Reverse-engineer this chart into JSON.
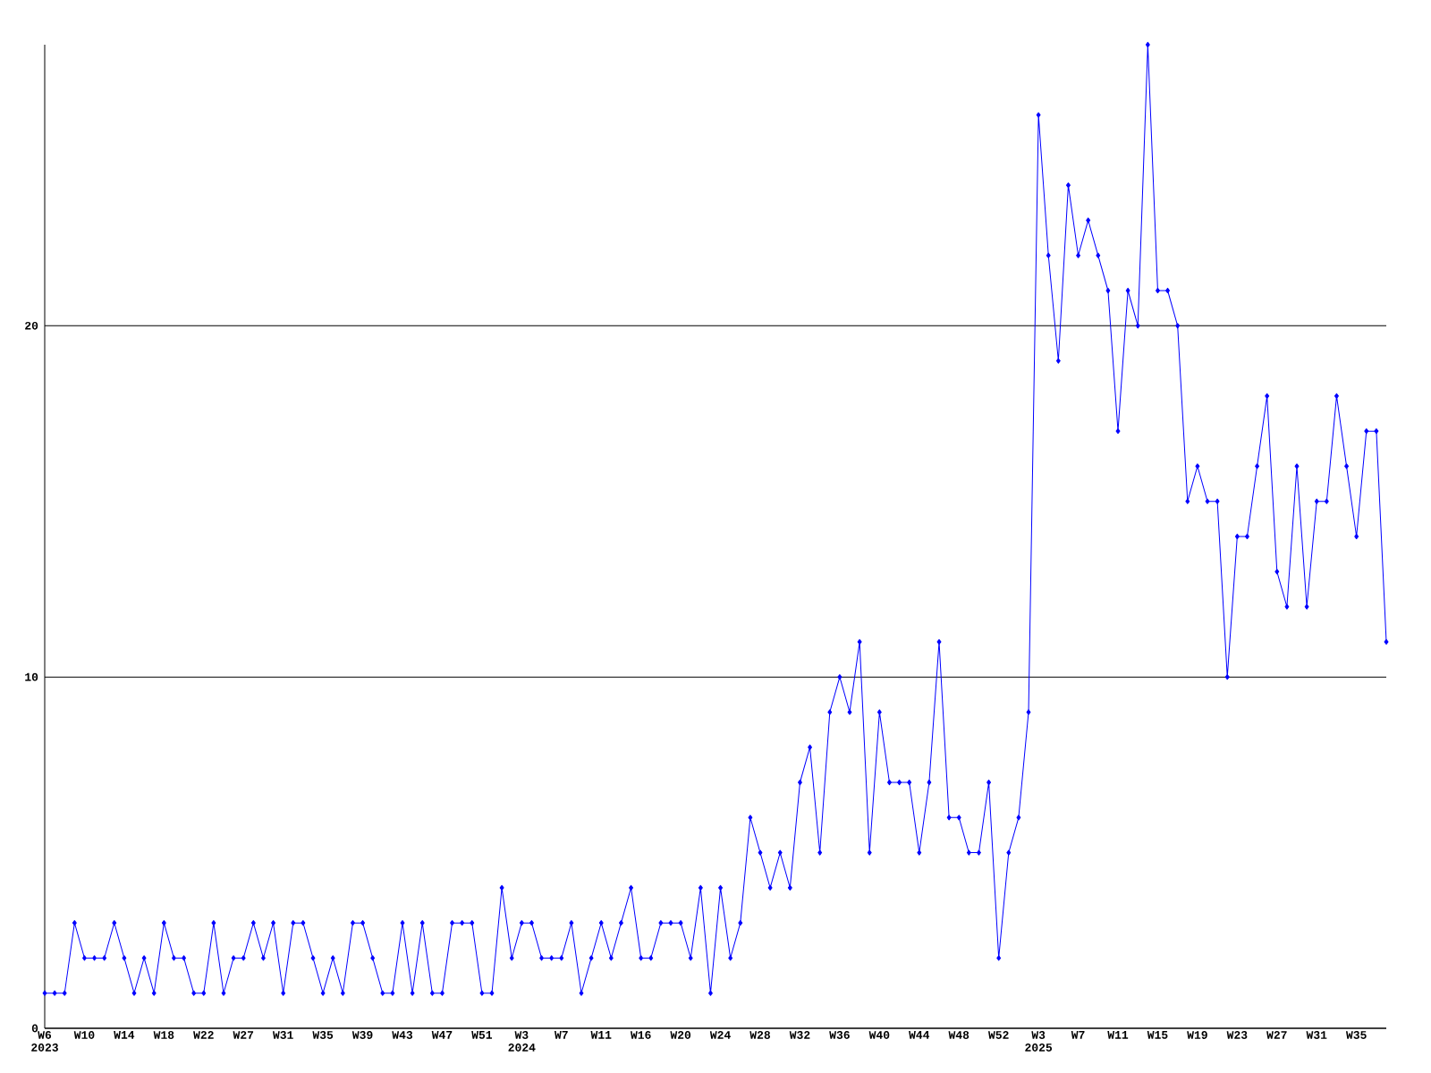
{
  "chart_data": {
    "type": "line",
    "categories": [
      "W6 2023",
      null,
      null,
      null,
      "W10",
      null,
      null,
      null,
      "W14",
      null,
      null,
      null,
      "W18",
      null,
      null,
      null,
      "W22",
      null,
      null,
      null,
      "W27",
      null,
      null,
      null,
      "W31",
      null,
      null,
      null,
      "W35",
      null,
      null,
      null,
      "W39",
      null,
      null,
      null,
      "W43",
      null,
      null,
      null,
      "W47",
      null,
      null,
      null,
      "W51",
      null,
      null,
      null,
      "W3 2024",
      null,
      null,
      null,
      "W7",
      null,
      null,
      null,
      "W11",
      null,
      null,
      null,
      "W16",
      null,
      null,
      null,
      "W20",
      null,
      null,
      null,
      "W24",
      null,
      null,
      null,
      "W28",
      null,
      null,
      null,
      "W32",
      null,
      null,
      null,
      "W36",
      null,
      null,
      null,
      "W40",
      null,
      null,
      null,
      "W44",
      null,
      null,
      null,
      "W48",
      null,
      null,
      null,
      "W52",
      null,
      null,
      null,
      "W3 2025",
      null,
      null,
      null,
      "W7",
      null,
      null,
      null,
      "W11",
      null,
      null,
      null,
      "W15",
      null,
      null,
      null,
      "W19",
      null,
      null,
      null,
      "W23",
      null,
      null,
      null,
      "W27",
      null,
      null,
      null,
      "W31",
      null,
      null,
      null,
      "W35",
      null,
      null,
      null
    ],
    "values": [
      1,
      1,
      1,
      3,
      2,
      2,
      2,
      3,
      2,
      1,
      2,
      1,
      3,
      2,
      2,
      1,
      1,
      3,
      1,
      2,
      2,
      3,
      2,
      3,
      1,
      3,
      3,
      2,
      1,
      2,
      1,
      3,
      3,
      2,
      1,
      1,
      3,
      1,
      3,
      1,
      1,
      3,
      3,
      3,
      1,
      1,
      4,
      2,
      3,
      3,
      2,
      2,
      2,
      3,
      1,
      2,
      3,
      2,
      3,
      4,
      2,
      2,
      3,
      3,
      3,
      2,
      4,
      1,
      4,
      2,
      3,
      6,
      5,
      4,
      5,
      4,
      7,
      8,
      5,
      9,
      10,
      9,
      11,
      5,
      9,
      7,
      7,
      7,
      5,
      7,
      11,
      6,
      6,
      5,
      5,
      7,
      2,
      5,
      6,
      9,
      26,
      22,
      19,
      24,
      22,
      23,
      22,
      21,
      17,
      21,
      20,
      28,
      21,
      21,
      20,
      15,
      16,
      15,
      15,
      10,
      14,
      14,
      16,
      18,
      13,
      12,
      16,
      12,
      15,
      15,
      18,
      16,
      14,
      17,
      17,
      11
    ],
    "color": "#0000ff",
    "marker": "diamond",
    "grid": "y",
    "ylim": [
      0,
      28
    ],
    "yticks": [
      0,
      10,
      20
    ]
  }
}
